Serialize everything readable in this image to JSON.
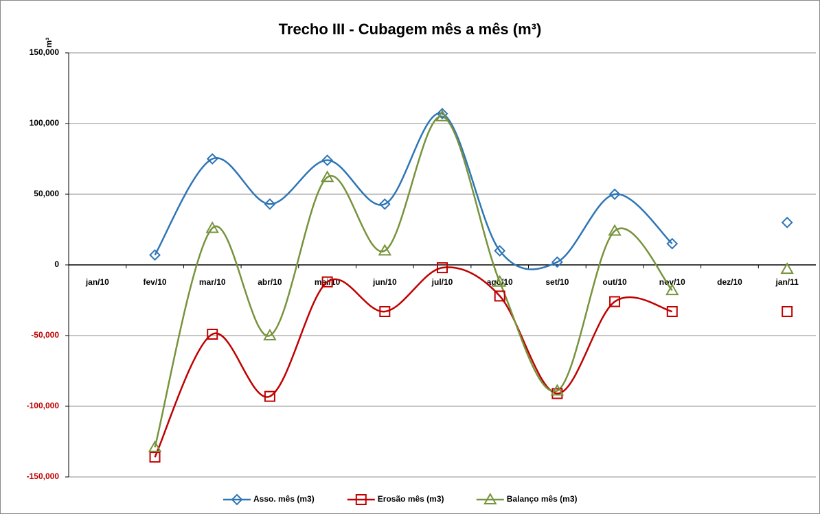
{
  "chart_data": {
    "type": "line",
    "title": "Trecho III - Cubagem mês a mês (m³)",
    "y_label": "m³",
    "categories": [
      "jan/10",
      "fev/10",
      "mar/10",
      "abr/10",
      "mai/10",
      "jun/10",
      "jul/10",
      "ago/10",
      "set/10",
      "out/10",
      "nov/10",
      "dez/10",
      "jan/11"
    ],
    "series": [
      {
        "name": "Asso. mês (m3)",
        "color": "#2e75b6",
        "marker": "diamond",
        "values": [
          null,
          7000,
          75000,
          43000,
          74000,
          43000,
          107000,
          10000,
          2000,
          50000,
          15000,
          null,
          30000
        ]
      },
      {
        "name": "Erosão mês (m3)",
        "color": "#c00000",
        "marker": "square",
        "values": [
          null,
          -136000,
          -49000,
          -93000,
          -12000,
          -33000,
          -2000,
          -22000,
          -91000,
          -26000,
          -33000,
          null,
          -33000
        ]
      },
      {
        "name": "Balanço mês (m3)",
        "color": "#77933c",
        "marker": "triangle",
        "values": [
          null,
          -129000,
          26000,
          -50000,
          62000,
          10000,
          105000,
          -12000,
          -89000,
          24000,
          -18000,
          null,
          -3000
        ]
      }
    ],
    "ylim": [
      -150000,
      150000
    ],
    "yticks": [
      {
        "value": -150000,
        "label": "-150,000"
      },
      {
        "value": -100000,
        "label": "-100,000"
      },
      {
        "value": -50000,
        "label": "-50,000"
      },
      0,
      {
        "value": 50000,
        "label": "50,000"
      },
      {
        "value": 100000,
        "label": "100,000"
      },
      {
        "value": 150000,
        "label": "150,000"
      }
    ],
    "negative_tick_color": "#c00000",
    "grid": true,
    "smooth": true,
    "legend": "bottom"
  }
}
